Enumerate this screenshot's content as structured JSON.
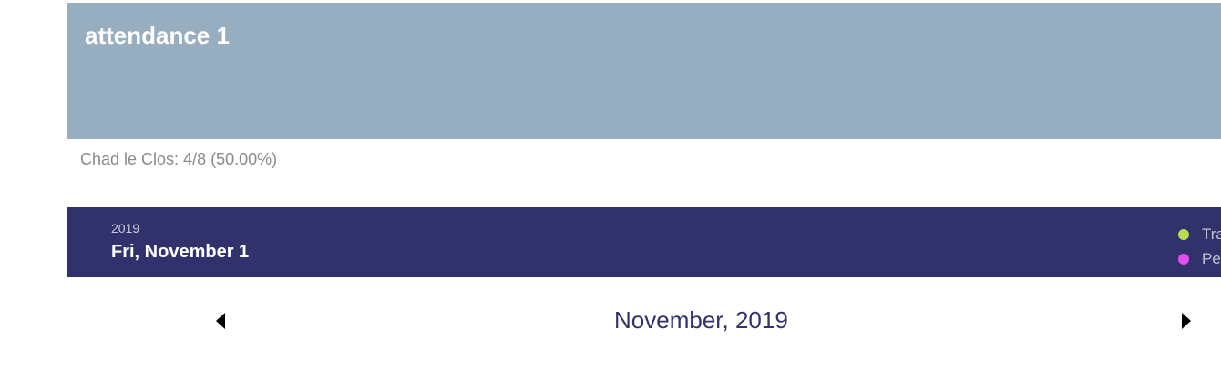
{
  "event": {
    "title": "attendance 1"
  },
  "summary": {
    "text": "Chad le Clos: 4/8 (50.00%)"
  },
  "selected_date": {
    "year": "2019",
    "full": "Fri, November 1"
  },
  "legend": [
    {
      "label": "Tra",
      "color": "#b8dd4c"
    },
    {
      "label": "Pe",
      "color": "#e04df0"
    }
  ],
  "calendar": {
    "month_label": "November, 2019",
    "prev_icon": "caret-left-icon",
    "next_icon": "caret-right-icon"
  },
  "colors": {
    "title_panel": "#97adc0",
    "header_bg": "#31326b",
    "month_text": "#31326b"
  }
}
